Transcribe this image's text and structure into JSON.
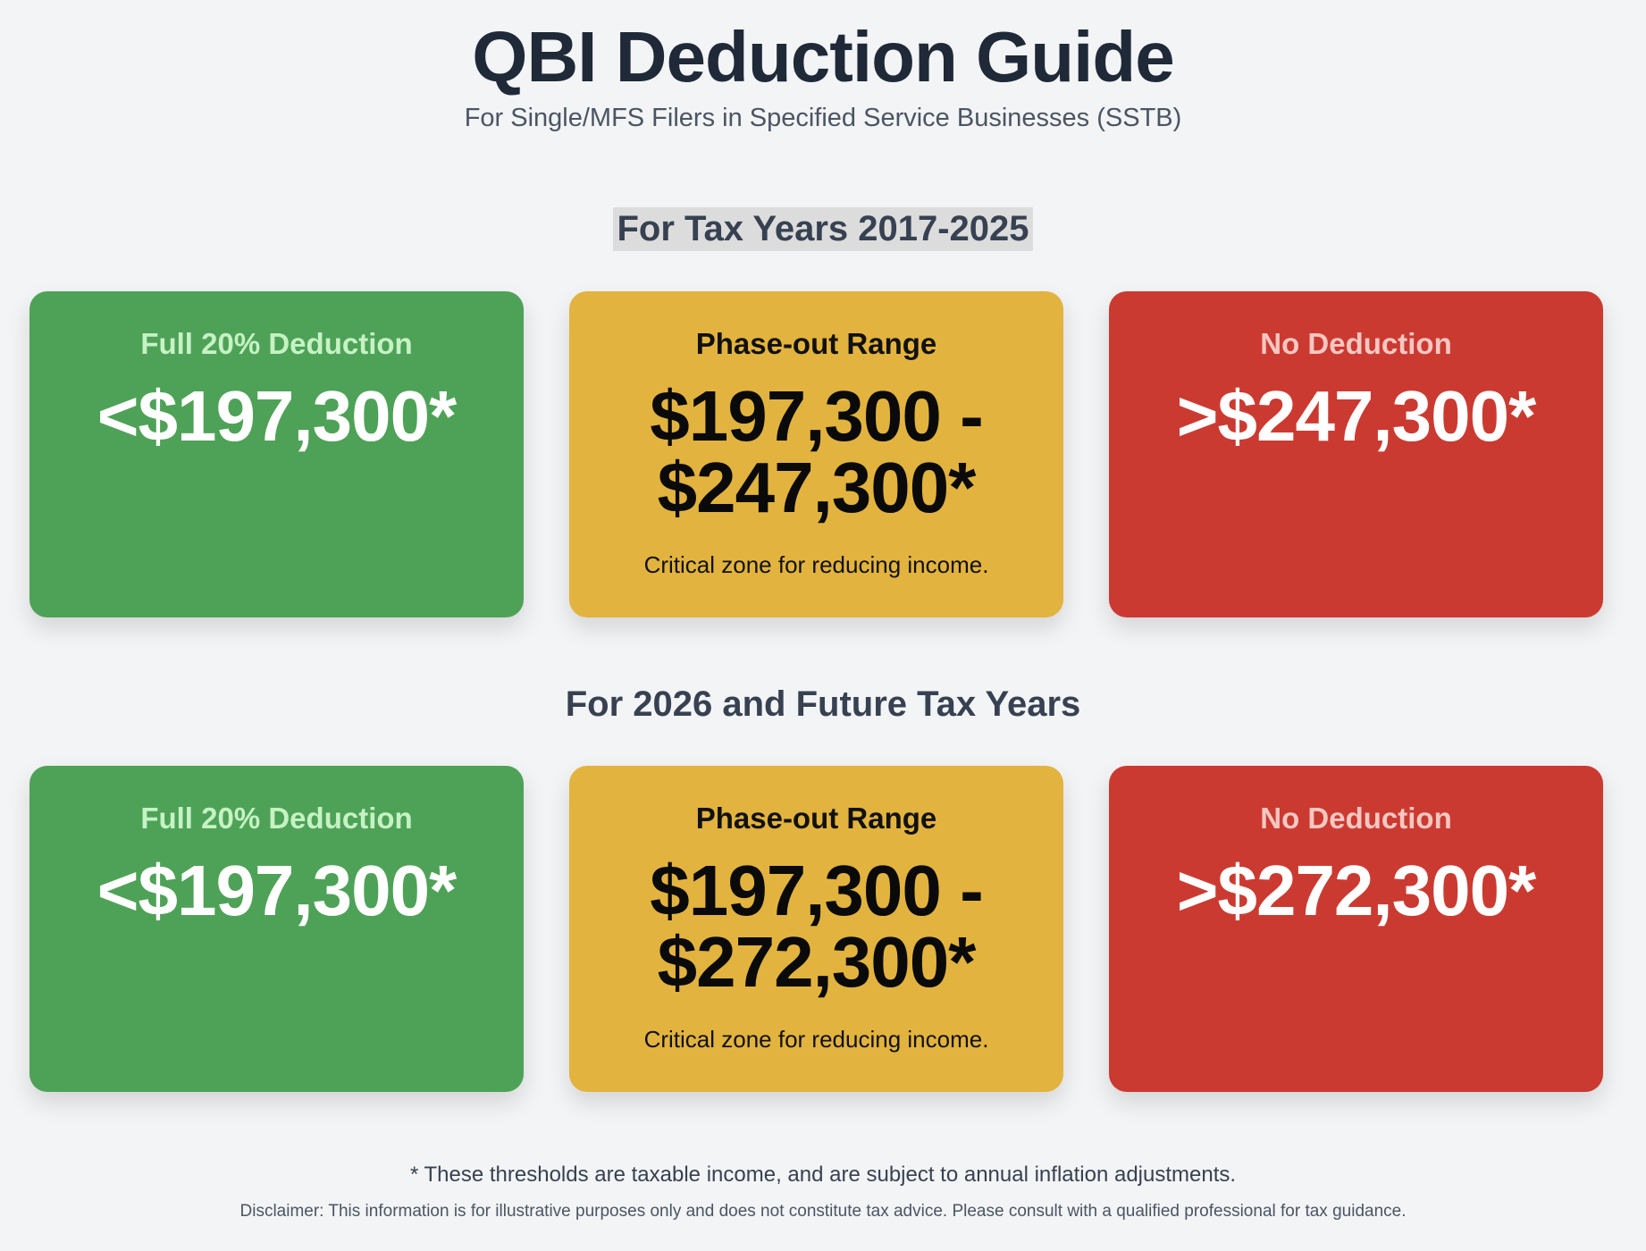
{
  "header": {
    "title": "QBI Deduction Guide",
    "subtitle": "For Single/MFS Filers in Specified Service Businesses (SSTB)"
  },
  "sections": [
    {
      "heading": "For Tax Years 2017-2025",
      "cards": [
        {
          "label": "Full 20% Deduction",
          "value": "<$197,300*"
        },
        {
          "label": "Phase-out Range",
          "value_line1": "$197,300 -",
          "value_line2": "$247,300*",
          "note": "Critical zone for reducing income."
        },
        {
          "label": "No Deduction",
          "value": ">$247,300*"
        }
      ]
    },
    {
      "heading": "For 2026 and Future Tax Years",
      "cards": [
        {
          "label": "Full 20% Deduction",
          "value": "<$197,300*"
        },
        {
          "label": "Phase-out Range",
          "value_line1": "$197,300 -",
          "value_line2": "$272,300*",
          "note": "Critical zone for reducing income."
        },
        {
          "label": "No Deduction",
          "value": ">$272,300*"
        }
      ]
    }
  ],
  "footer": {
    "footnote": "* These thresholds are taxable income, and are subject to annual inflation adjustments.",
    "disclaimer": "Disclaimer: This information is for illustrative purposes only and does not constitute tax advice. Please consult with a qualified professional for tax guidance."
  },
  "colors": {
    "full_deduction": "#4ea257",
    "phase_out": "#e2b33e",
    "no_deduction": "#cb3a31"
  }
}
